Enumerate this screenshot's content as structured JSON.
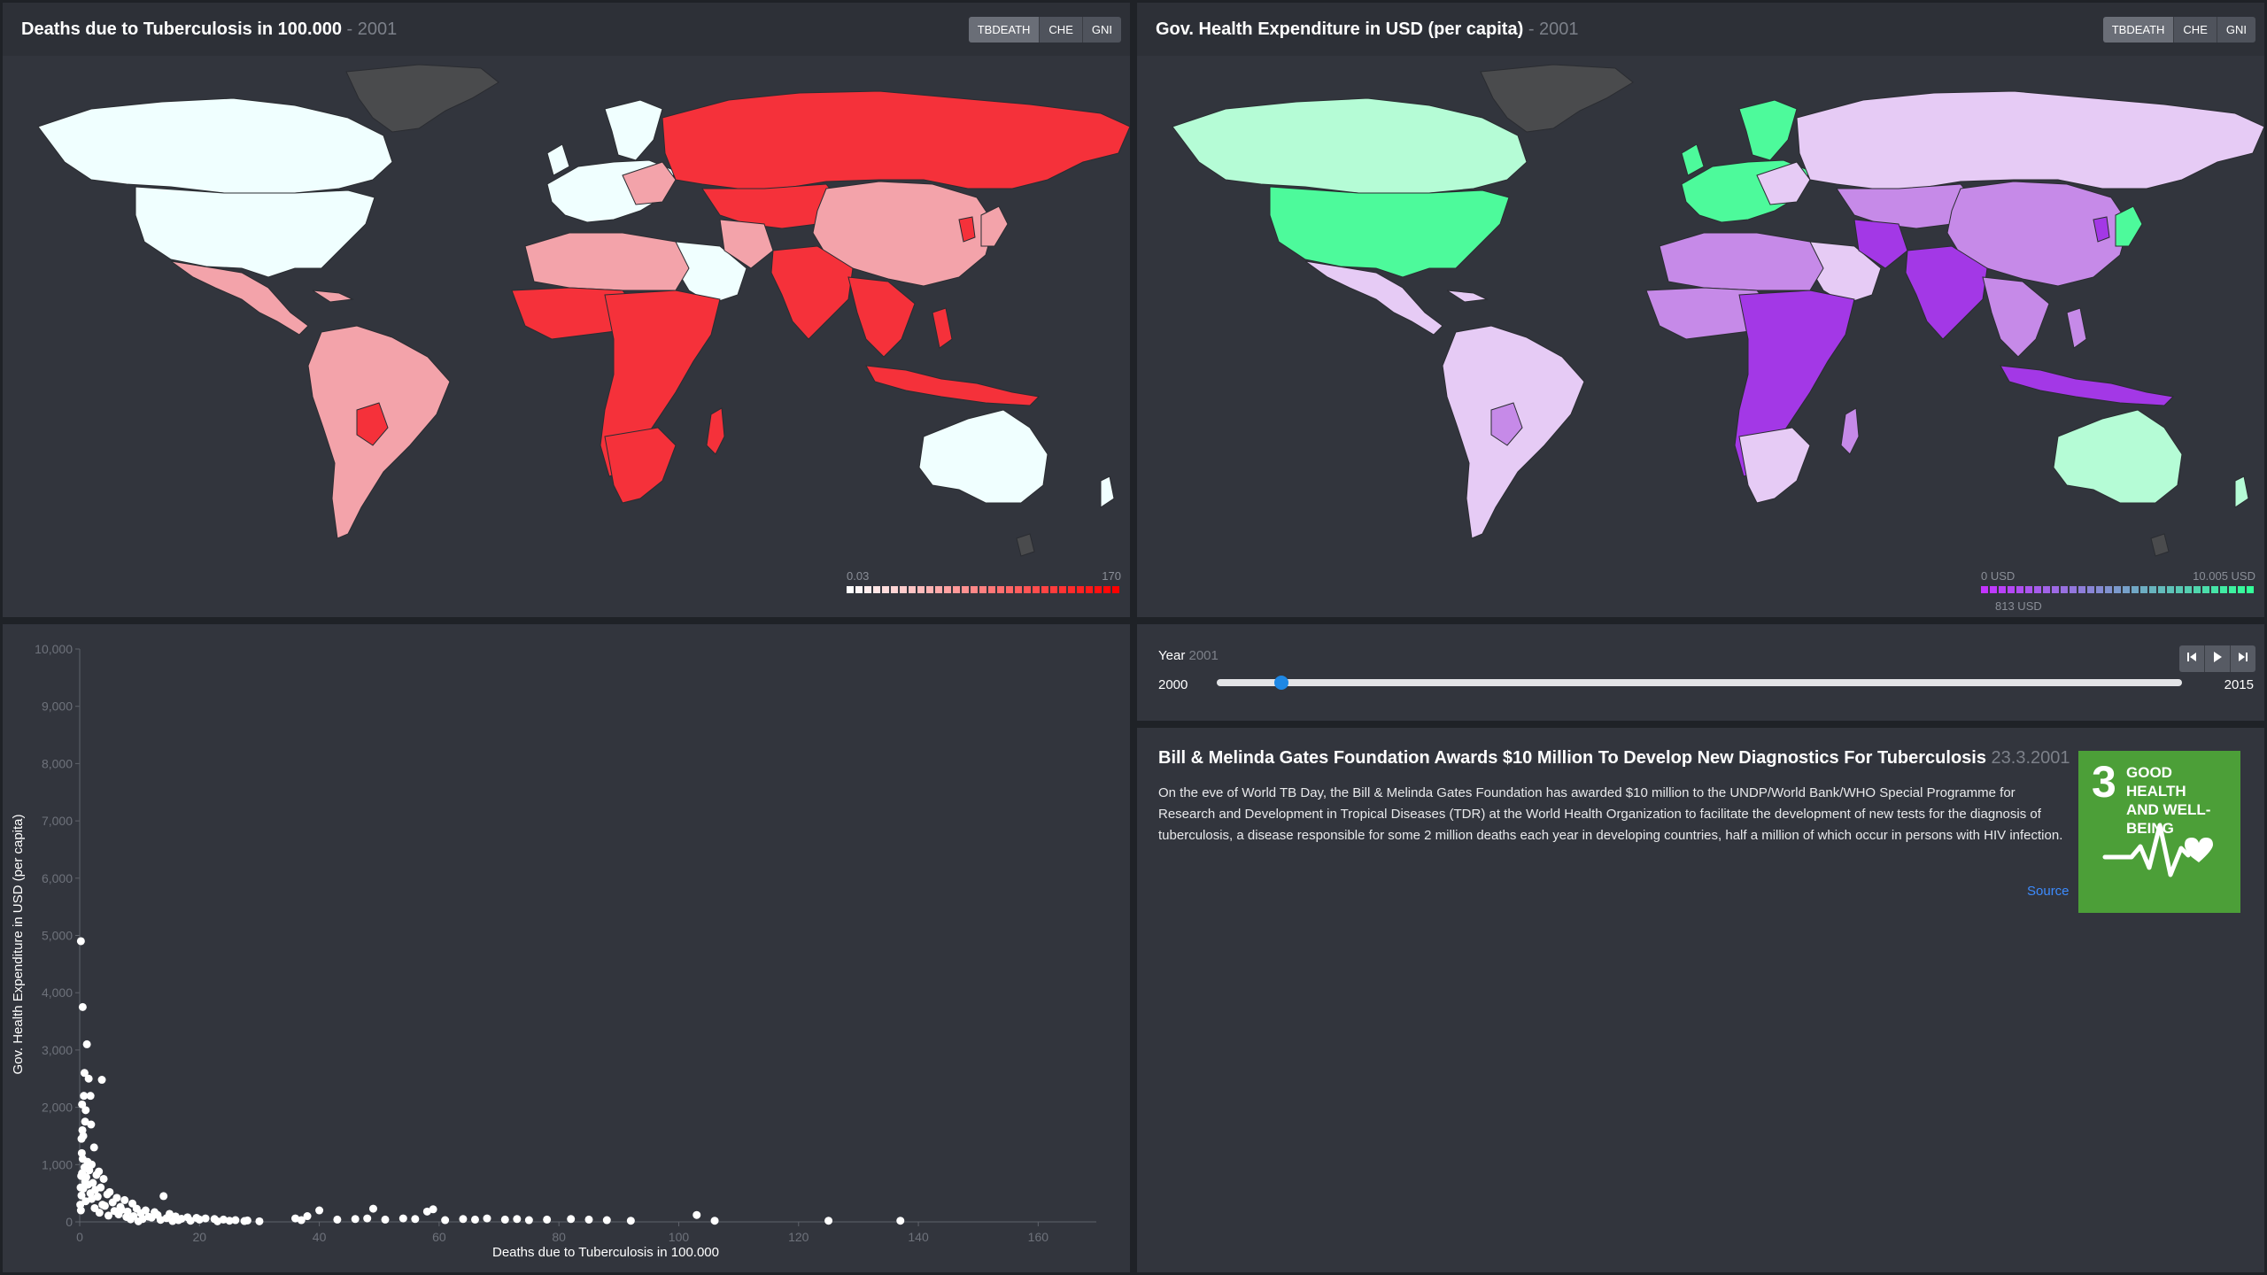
{
  "panels": {
    "tb_map": {
      "title": "Deaths due to Tuberculosis in 100.000",
      "year": "- 2001",
      "buttons": [
        "TBDEATH",
        "CHE",
        "GNI"
      ],
      "active": "TBDEATH",
      "legend": {
        "min": "0.03",
        "max": "170",
        "from": "#ffffff",
        "to": "#ff0000"
      },
      "colors": {
        "low": "#f0ffff",
        "mid": "#f3a3aa",
        "high": "#f5313a",
        "na": "#4a4b4d",
        "ocean": "#32353d"
      }
    },
    "che_map": {
      "title": "Gov. Health Expenditure in USD (per capita)",
      "year": "- 2001",
      "buttons": [
        "TBDEATH",
        "CHE",
        "GNI"
      ],
      "active": "TBDEATH",
      "legend": {
        "min": "0 USD",
        "max": "10.005 USD",
        "current": "813 USD",
        "from": "#c333ff",
        "to": "#33ff99"
      },
      "colors": {
        "low": "#a338e6",
        "mid": "#c68ae8",
        "pale": "#e6cbf5",
        "high": "#4dfa9b",
        "light": "#b5fcd6",
        "na": "#4a4b4d"
      }
    }
  },
  "scatter": {
    "x_label": "Deaths due to Tuberculosis in 100.000",
    "y_label": "Gov. Health Expenditure in USD (per capita)"
  },
  "chart_data": {
    "type": "scatter",
    "xlabel": "Deaths due to Tuberculosis in 100.000",
    "ylabel": "Gov. Health Expenditure in USD (per capita)",
    "xlim": [
      0,
      170
    ],
    "ylim": [
      0,
      10000
    ],
    "x_ticks": [
      "0",
      "20",
      "40",
      "60",
      "80",
      "100",
      "120",
      "140",
      "160"
    ],
    "y_ticks": [
      "0",
      "1,000",
      "2,000",
      "3,000",
      "4,000",
      "5,000",
      "6,000",
      "7,000",
      "8,000",
      "9,000",
      "10,000"
    ],
    "points": [
      [
        0.2,
        4900
      ],
      [
        0.5,
        3750
      ],
      [
        1.2,
        3100
      ],
      [
        0.8,
        2600
      ],
      [
        1.5,
        2500
      ],
      [
        3.7,
        2480
      ],
      [
        0.7,
        2200
      ],
      [
        1.8,
        2200
      ],
      [
        0.4,
        2050
      ],
      [
        1.0,
        1950
      ],
      [
        0.9,
        1750
      ],
      [
        1.9,
        1700
      ],
      [
        0.6,
        1500
      ],
      [
        0.3,
        1450
      ],
      [
        2.4,
        1300
      ],
      [
        0.5,
        1100
      ],
      [
        1.3,
        1050
      ],
      [
        2.0,
        1000
      ],
      [
        0.8,
        950
      ],
      [
        1.6,
        900
      ],
      [
        3.2,
        880
      ],
      [
        0.4,
        850
      ],
      [
        2.8,
        820
      ],
      [
        1.1,
        780
      ],
      [
        4.0,
        750
      ],
      [
        0.9,
        700
      ],
      [
        2.2,
        680
      ],
      [
        1.4,
        650
      ],
      [
        3.5,
        600
      ],
      [
        0.6,
        580
      ],
      [
        2.6,
        560
      ],
      [
        5.0,
        520
      ],
      [
        1.8,
        500
      ],
      [
        4.6,
        480
      ],
      [
        0.3,
        460
      ],
      [
        3.0,
        440
      ],
      [
        6.2,
        420
      ],
      [
        2.0,
        400
      ],
      [
        7.5,
        380
      ],
      [
        1.0,
        360
      ],
      [
        5.5,
        340
      ],
      [
        8.8,
        320
      ],
      [
        3.8,
        300
      ],
      [
        4.2,
        280
      ],
      [
        6.8,
        260
      ],
      [
        2.5,
        240
      ],
      [
        9.5,
        230
      ],
      [
        7.0,
        210
      ],
      [
        11.0,
        200
      ],
      [
        5.8,
        190
      ],
      [
        8.0,
        180
      ],
      [
        12.5,
        170
      ],
      [
        3.3,
        160
      ],
      [
        14.0,
        450
      ],
      [
        10.2,
        150
      ],
      [
        15.0,
        140
      ],
      [
        6.5,
        130
      ],
      [
        13.0,
        120
      ],
      [
        4.8,
        110
      ],
      [
        9.0,
        100
      ],
      [
        16.0,
        95
      ],
      [
        11.5,
        90
      ],
      [
        7.8,
        85
      ],
      [
        18.0,
        80
      ],
      [
        12.0,
        75
      ],
      [
        19.5,
        70
      ],
      [
        14.5,
        65
      ],
      [
        21.0,
        60
      ],
      [
        17.0,
        55
      ],
      [
        10.5,
        50
      ],
      [
        22.5,
        50
      ],
      [
        8.5,
        45
      ],
      [
        20.0,
        40
      ],
      [
        24.0,
        40
      ],
      [
        13.5,
        35
      ],
      [
        26.0,
        30
      ],
      [
        16.5,
        30
      ],
      [
        28.0,
        25
      ],
      [
        25.0,
        20
      ],
      [
        18.5,
        20
      ],
      [
        15.5,
        15
      ],
      [
        27.5,
        15
      ],
      [
        30.0,
        10
      ],
      [
        23.0,
        10
      ],
      [
        9.8,
        10
      ],
      [
        36.0,
        60
      ],
      [
        38.0,
        100
      ],
      [
        40.0,
        200
      ],
      [
        37.0,
        30
      ],
      [
        43.0,
        40
      ],
      [
        46.0,
        50
      ],
      [
        48.0,
        60
      ],
      [
        49.0,
        230
      ],
      [
        51.0,
        40
      ],
      [
        54.0,
        60
      ],
      [
        56.0,
        50
      ],
      [
        58.0,
        180
      ],
      [
        59.0,
        220
      ],
      [
        61.0,
        30
      ],
      [
        64.0,
        50
      ],
      [
        66.0,
        40
      ],
      [
        68.0,
        60
      ],
      [
        71.0,
        40
      ],
      [
        73.0,
        50
      ],
      [
        75.0,
        30
      ],
      [
        78.0,
        40
      ],
      [
        82.0,
        50
      ],
      [
        85.0,
        40
      ],
      [
        88.0,
        30
      ],
      [
        92.0,
        20
      ],
      [
        103.0,
        120
      ],
      [
        106.0,
        20
      ],
      [
        125.0,
        20
      ],
      [
        137.0,
        20
      ],
      [
        0.1,
        300
      ],
      [
        0.2,
        200
      ],
      [
        0.15,
        600
      ],
      [
        0.25,
        800
      ],
      [
        0.35,
        1200
      ],
      [
        0.45,
        1600
      ]
    ]
  },
  "year_slider": {
    "label": "Year",
    "current": "2001",
    "min": "2000",
    "max": "2015",
    "value": 2001,
    "range": [
      2000,
      2015
    ]
  },
  "player": {
    "prev_icon": "skip-back-icon",
    "play_icon": "play-icon",
    "next_icon": "skip-forward-icon"
  },
  "news": {
    "headline": "Bill & Melinda Gates Foundation Awards $10 Million To Develop New Diagnostics For Tuberculosis",
    "date": "23.3.2001",
    "body": "On the eve of World TB Day, the Bill & Melinda Gates Foundation has awarded $10 million to the UNDP/World Bank/WHO Special Programme for Research and Development in Tropical Diseases (TDR) at the World Health Organization to facilitate the development of new tests for the diagnosis of tuberculosis, a disease responsible for some 2 million deaths each year in developing countries, half a million of which occur in persons with HIV infection.",
    "source_label": "Source",
    "sdg": {
      "number": "3",
      "line1": "GOOD HEALTH",
      "line2": "AND WELL-BEING",
      "color": "#4c9f38"
    }
  }
}
